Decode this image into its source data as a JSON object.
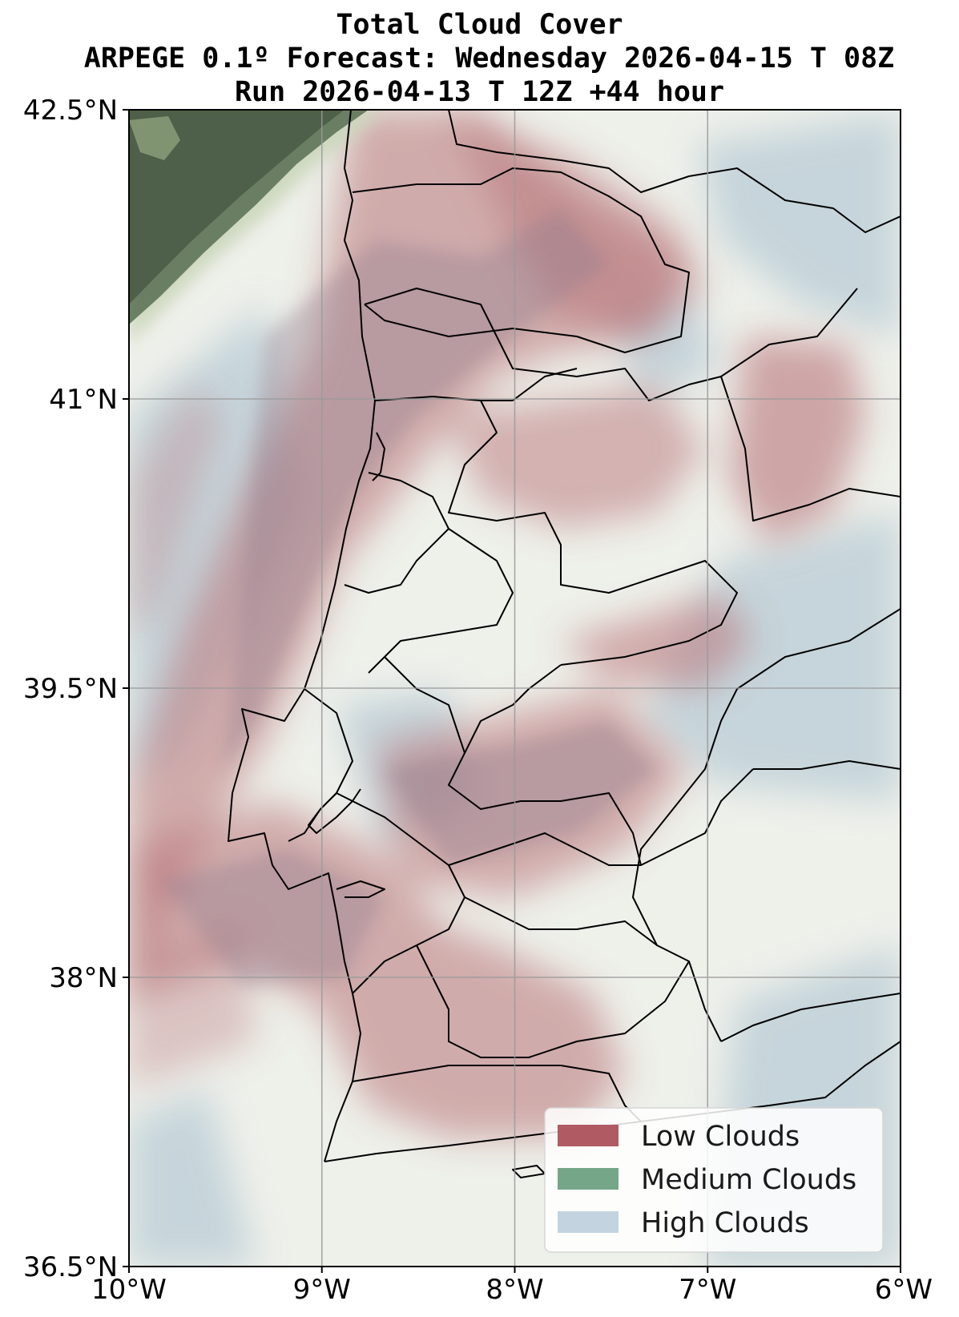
{
  "title": {
    "line1": "Total Cloud Cover",
    "line2": "ARPEGE 0.1º Forecast: Wednesday 2026-04-15 T 08Z",
    "line3": "Run 2026-04-13 T 12Z +44 hour"
  },
  "map": {
    "lon_range": [
      -10,
      -6
    ],
    "lat_range": [
      36.5,
      42.5
    ],
    "grid": true,
    "x_ticks": [
      {
        "value": -10,
        "label": "10°W"
      },
      {
        "value": -9,
        "label": "9°W"
      },
      {
        "value": -8,
        "label": "8°W"
      },
      {
        "value": -7,
        "label": "7°W"
      },
      {
        "value": -6,
        "label": "6°W"
      }
    ],
    "y_ticks": [
      {
        "value": 42.5,
        "label": "42.5°N"
      },
      {
        "value": 41,
        "label": "41°N"
      },
      {
        "value": 39.5,
        "label": "39.5°N"
      },
      {
        "value": 38,
        "label": "38°N"
      },
      {
        "value": 36.5,
        "label": "36.5°N"
      }
    ]
  },
  "legend": {
    "placement": "lower-right",
    "items": [
      {
        "label": "Low Clouds",
        "color": "#b05a63"
      },
      {
        "label": "Medium Clouds",
        "color": "#75a688"
      },
      {
        "label": "High Clouds",
        "color": "#c3d3e0"
      }
    ]
  },
  "colors": {
    "low": "#b87378",
    "medium": "#4f6a4c",
    "high": "#b9ccd6",
    "background": "#eef0ea",
    "border": "#000000"
  }
}
